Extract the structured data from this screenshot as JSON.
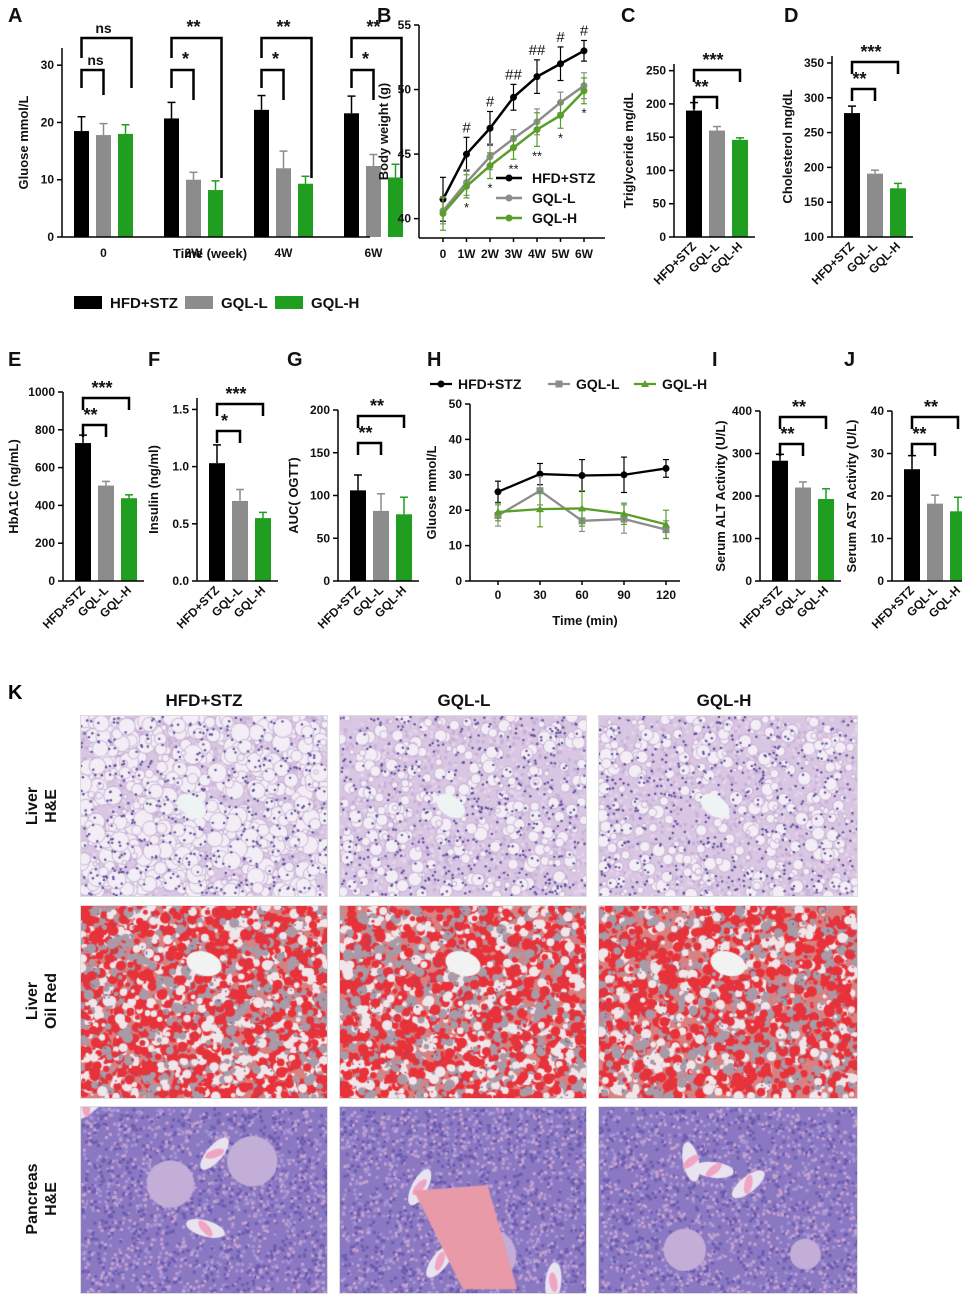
{
  "colors": {
    "hfd": "#000000",
    "gqll": "#8c8c8c",
    "gqlh": "#1f9e1f",
    "gqlh_line": "#5a9e2a"
  },
  "legend_top": {
    "hfd": "HFD+STZ",
    "gqll": "GQL-L",
    "gqlh": "GQL-H"
  },
  "chart_data": [
    {
      "panel": "A",
      "type": "bar",
      "ylabel": "Gluose mmol/L",
      "xlabel": "Time (week)",
      "categories": [
        "0",
        "2W",
        "4W",
        "6W"
      ],
      "yticks": [
        0,
        10,
        20,
        30
      ],
      "ylim": [
        0,
        33
      ],
      "series": [
        {
          "name": "HFD+STZ",
          "values": [
            18.5,
            20.7,
            22.2,
            21.6
          ],
          "err": [
            2.5,
            2.8,
            2.5,
            3.0
          ]
        },
        {
          "name": "GQL-L",
          "values": [
            17.8,
            10.0,
            12.0,
            12.4
          ],
          "err": [
            2.0,
            1.3,
            3.0,
            2.0
          ]
        },
        {
          "name": "GQL-H",
          "values": [
            18.0,
            8.2,
            9.3,
            10.4
          ],
          "err": [
            1.6,
            1.6,
            1.3,
            2.3
          ]
        }
      ],
      "significance": [
        {
          "cat": "0",
          "inner": "ns",
          "outer": "ns"
        },
        {
          "cat": "2W",
          "inner": "*",
          "outer": "**"
        },
        {
          "cat": "4W",
          "inner": "*",
          "outer": "**"
        },
        {
          "cat": "6W",
          "inner": "*",
          "outer": "**"
        }
      ]
    },
    {
      "panel": "B",
      "type": "line",
      "ylabel": "Body weight (g)",
      "x": [
        "0",
        "1W",
        "2W",
        "3W",
        "4W",
        "5W",
        "6W"
      ],
      "yticks": [
        40,
        45,
        50,
        55
      ],
      "ylim": [
        38.5,
        55
      ],
      "series": [
        {
          "name": "HFD+STZ",
          "values": [
            41.5,
            45.0,
            47.0,
            49.4,
            51.0,
            52.0,
            53.0
          ],
          "err": [
            1.7,
            1.3,
            1.3,
            1.0,
            1.3,
            1.3,
            0.8
          ]
        },
        {
          "name": "GQL-L",
          "values": [
            40.6,
            42.8,
            44.8,
            46.2,
            47.5,
            49.0,
            50.3
          ],
          "err": [
            1.0,
            1.0,
            1.0,
            0.7,
            1.0,
            0.8,
            1.0
          ]
        },
        {
          "name": "GQL-H",
          "values": [
            40.4,
            42.5,
            44.1,
            45.5,
            46.9,
            48.0,
            49.9
          ],
          "err": [
            1.3,
            0.9,
            1.0,
            0.9,
            1.3,
            1.0,
            1.0
          ]
        }
      ],
      "marks_top": [
        "",
        "#",
        "#",
        "##",
        "##",
        "#",
        "#"
      ],
      "marks_bottom": [
        "",
        "*",
        "*",
        "**",
        "**",
        "*",
        "*"
      ]
    },
    {
      "panel": "C",
      "type": "bar",
      "ylabel": "Triglyceride  mg/dL",
      "categories": [
        "HFD+STZ",
        "GQL-L",
        "GQL-H"
      ],
      "values": [
        190,
        160,
        146
      ],
      "err": [
        12,
        6,
        3
      ],
      "yticks": [
        0,
        50,
        100,
        150,
        200,
        250
      ],
      "ylim": [
        0,
        260
      ],
      "significance": [
        {
          "inner": "**",
          "outer": "***"
        }
      ]
    },
    {
      "panel": "D",
      "type": "bar",
      "ylabel": "Cholesterol mg/dL",
      "categories": [
        "HFD+STZ",
        "GQL-L",
        "GQL-H"
      ],
      "values": [
        278,
        191,
        170
      ],
      "err": [
        10,
        5,
        7
      ],
      "yticks": [
        100,
        150,
        200,
        250,
        300,
        350
      ],
      "ylim": [
        100,
        360
      ],
      "significance": [
        {
          "inner": "**",
          "outer": "***"
        }
      ]
    },
    {
      "panel": "E",
      "type": "bar",
      "ylabel": "HbA1C (ng/mL)",
      "categories": [
        "HFD+STZ",
        "GQL-L",
        "GQL-H"
      ],
      "values": [
        730,
        505,
        438
      ],
      "err": [
        42,
        22,
        18
      ],
      "yticks": [
        0,
        200,
        400,
        600,
        800,
        1000
      ],
      "ylim": [
        0,
        1000
      ],
      "significance": [
        {
          "inner": "**",
          "outer": "***"
        }
      ]
    },
    {
      "panel": "F",
      "type": "bar",
      "ylabel": "Insulin (ng/ml)",
      "categories": [
        "HFD+STZ",
        "GQL-L",
        "GQL-H"
      ],
      "values": [
        1.03,
        0.7,
        0.55
      ],
      "err": [
        0.16,
        0.1,
        0.05
      ],
      "yticks": [
        0.0,
        0.5,
        1.0,
        1.5
      ],
      "ytick_labels": [
        "0.0",
        "0.5",
        "1.0",
        "1.5"
      ],
      "ylim": [
        0,
        1.6
      ],
      "significance": [
        {
          "inner": "*",
          "outer": "***"
        }
      ]
    },
    {
      "panel": "G",
      "type": "bar",
      "ylabel": "AUC( OGTT)",
      "categories": [
        "HFD+STZ",
        "GQL-L",
        "GQL-H"
      ],
      "values": [
        106,
        82,
        78
      ],
      "err": [
        18,
        20,
        20
      ],
      "yticks": [
        0,
        50,
        100,
        150,
        200
      ],
      "ylim": [
        0,
        200
      ],
      "significance": [
        {
          "inner": "**",
          "outer": "**"
        }
      ]
    },
    {
      "panel": "H",
      "type": "line",
      "ylabel": "Gluose mmol/L",
      "xlabel": "Time (min)",
      "x": [
        0,
        30,
        60,
        90,
        120
      ],
      "yticks": [
        0,
        10,
        20,
        30,
        40,
        50
      ],
      "ylim": [
        0,
        50
      ],
      "series": [
        {
          "name": "HFD+STZ",
          "values": [
            25.2,
            30.2,
            29.8,
            30.0,
            31.8
          ],
          "err": [
            3.0,
            3.0,
            4.5,
            5.0,
            2.5
          ]
        },
        {
          "name": "GQL-L",
          "values": [
            18.5,
            25.5,
            17.0,
            17.5,
            14.5
          ],
          "err": [
            3.0,
            4.0,
            3.0,
            4.0,
            2.5
          ]
        },
        {
          "name": "GQL-H",
          "values": [
            19.5,
            20.3,
            20.5,
            19.0,
            16.0
          ],
          "err": [
            2.5,
            5.0,
            5.0,
            3.0,
            4.0
          ]
        }
      ],
      "legend": {
        "hfd": "HFD+STZ",
        "gqll": "GQL-L",
        "gqlh": "GQL-H"
      }
    },
    {
      "panel": "I",
      "type": "bar",
      "ylabel": "Serum ALT Activity (U/L)",
      "categories": [
        "HFD+STZ",
        "GQL-L",
        "GQL-H"
      ],
      "values": [
        283,
        220,
        193
      ],
      "err": [
        15,
        13,
        24
      ],
      "yticks": [
        0,
        100,
        200,
        300,
        400
      ],
      "ylim": [
        0,
        400
      ],
      "significance": [
        {
          "inner": "**",
          "outer": "**"
        }
      ]
    },
    {
      "panel": "J",
      "type": "bar",
      "ylabel": "Serum AST Activity (U/L)",
      "categories": [
        "HFD+STZ",
        "GQL-L",
        "GQL-H"
      ],
      "values": [
        26.3,
        18.2,
        16.4
      ],
      "err": [
        3.2,
        2.0,
        3.3
      ],
      "yticks": [
        0,
        10,
        20,
        30,
        40
      ],
      "ylim": [
        0,
        40
      ],
      "significance": [
        {
          "inner": "**",
          "outer": "**"
        }
      ]
    }
  ],
  "histology": {
    "panel_letter": "K",
    "columns": [
      "HFD+STZ",
      "GQL-L",
      "GQL-H"
    ],
    "rows": [
      "Liver\nH&E",
      "Liver\nOil Red",
      "Pancreas\nH&E"
    ]
  }
}
